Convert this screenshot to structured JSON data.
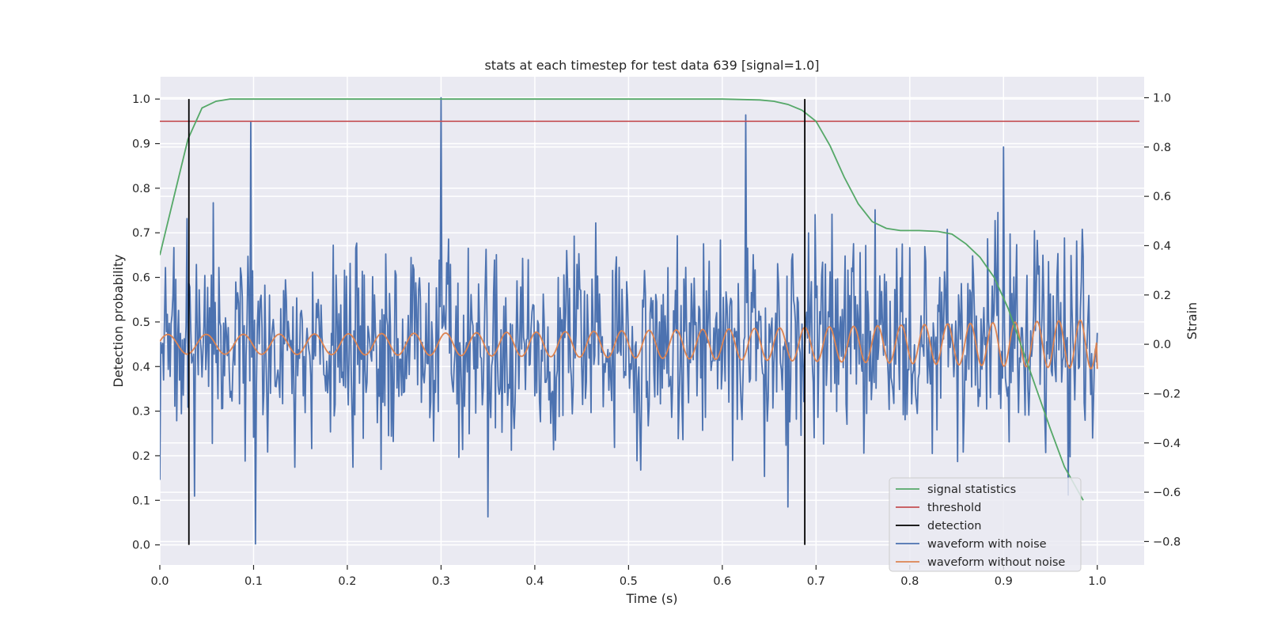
{
  "chart_data": {
    "type": "line",
    "title": "stats at each timestep for test data 639 [signal=1.0]",
    "xlabel": "Time (s)",
    "ylabel": "Detection probability",
    "y2label": "Strain",
    "xlim": [
      0.0,
      1.05
    ],
    "ylim": [
      -0.045,
      1.05
    ],
    "y2lim": [
      -0.895,
      1.085
    ],
    "xticks": [
      "0.0",
      "0.1",
      "0.2",
      "0.3",
      "0.4",
      "0.5",
      "0.6",
      "0.7",
      "0.8",
      "0.9",
      "1.0"
    ],
    "yticks": [
      "0.0",
      "0.1",
      "0.2",
      "0.3",
      "0.4",
      "0.5",
      "0.6",
      "0.7",
      "0.8",
      "0.9",
      "1.0"
    ],
    "y2ticks": [
      "−0.8",
      "−0.6",
      "−0.4",
      "−0.2",
      "0.0",
      "0.2",
      "0.4",
      "0.6",
      "0.8",
      "1.0"
    ],
    "grid": true,
    "legend_position": "lower-right",
    "colors": {
      "signal_statistics": "#55a868",
      "threshold": "#c44e52",
      "detection": "#000000",
      "waveform_with_noise": "#4c72b0",
      "waveform_without_noise": "#dd8452",
      "plot_background": "#eaeaf2",
      "grid": "#ffffff"
    },
    "series": [
      {
        "name": "signal statistics",
        "axis": "left",
        "x": [
          0.0,
          0.015,
          0.03,
          0.045,
          0.06,
          0.075,
          0.1,
          0.2,
          0.3,
          0.4,
          0.5,
          0.6,
          0.64,
          0.655,
          0.67,
          0.685,
          0.7,
          0.715,
          0.73,
          0.745,
          0.76,
          0.775,
          0.79,
          0.81,
          0.83,
          0.845,
          0.86,
          0.875,
          0.89,
          0.905,
          0.92,
          0.935,
          0.95,
          0.965,
          0.985
        ],
        "y": [
          0.65,
          0.78,
          0.91,
          0.98,
          0.995,
          1.0,
          1.0,
          1.0,
          1.0,
          1.0,
          1.0,
          1.0,
          0.998,
          0.995,
          0.988,
          0.975,
          0.95,
          0.895,
          0.825,
          0.765,
          0.725,
          0.71,
          0.705,
          0.705,
          0.703,
          0.697,
          0.675,
          0.645,
          0.6,
          0.53,
          0.44,
          0.35,
          0.26,
          0.175,
          0.1
        ]
      },
      {
        "name": "threshold",
        "axis": "left",
        "x": [
          0.0,
          1.045
        ],
        "y": [
          0.95,
          0.95
        ]
      },
      {
        "name": "detection",
        "axis": "left",
        "type": "vlines",
        "x": [
          0.031,
          0.688
        ],
        "ymin": 0.0,
        "ymax": 1.0
      },
      {
        "name": "waveform with noise",
        "axis": "right",
        "type": "noise",
        "x_range": [
          0.0,
          1.0
        ],
        "points": 1000,
        "y_range_observed": [
          -0.8,
          1.0
        ],
        "spikes": [
          {
            "x": 0.0,
            "y": -0.55
          },
          {
            "x": 0.097,
            "y": 0.9
          },
          {
            "x": 0.102,
            "y": -0.81
          },
          {
            "x": 0.3,
            "y": 1.0
          },
          {
            "x": 0.35,
            "y": -0.7
          },
          {
            "x": 0.625,
            "y": 0.93
          },
          {
            "x": 0.67,
            "y": -0.66
          },
          {
            "x": 0.9,
            "y": 0.8
          }
        ]
      },
      {
        "name": "waveform without noise",
        "axis": "right",
        "x_range": [
          0.0,
          1.0
        ],
        "amplitude_start": 0.04,
        "amplitude_end": 0.1,
        "cycles": 34,
        "end_value": -0.1
      }
    ]
  }
}
